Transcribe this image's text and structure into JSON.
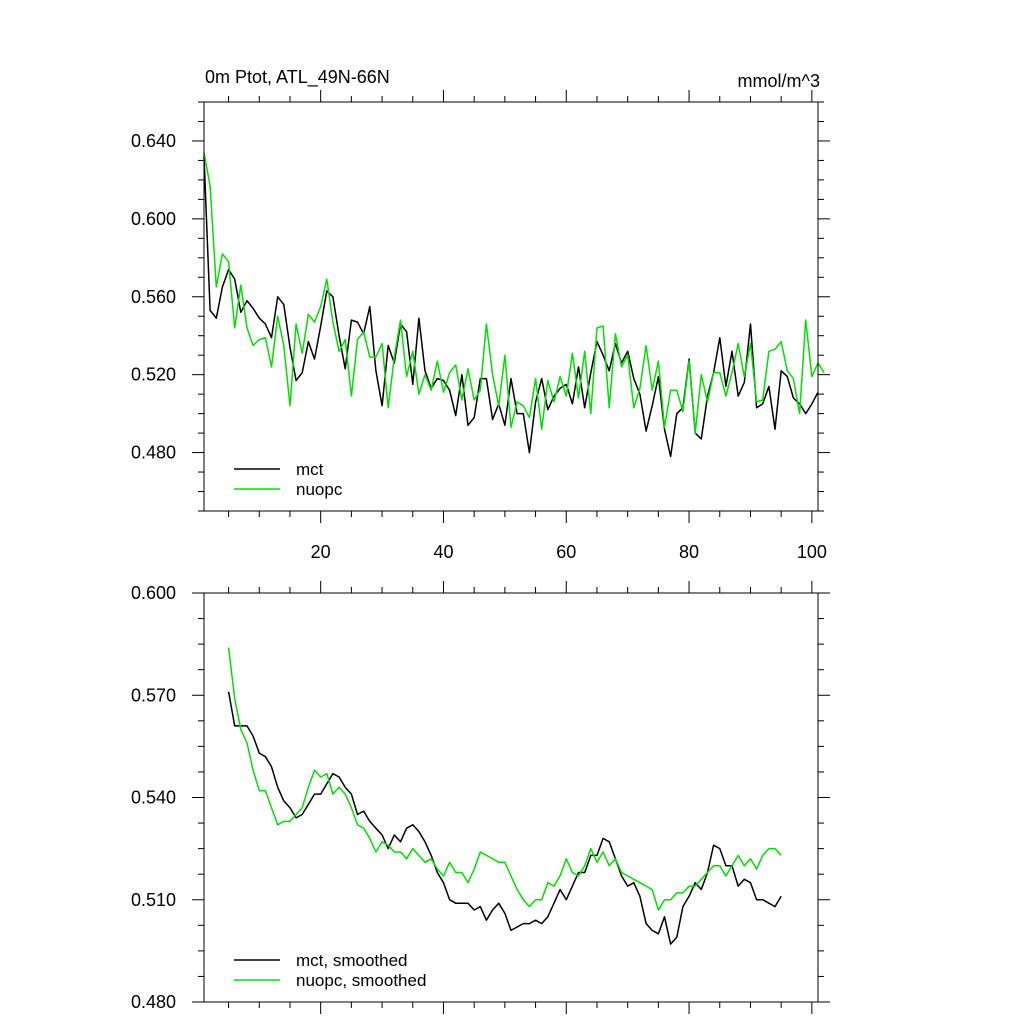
{
  "chart_data": [
    {
      "type": "line",
      "title": "0m Ptot, ATL_49N-66N",
      "units": "mmol/m^3",
      "xlabel": "",
      "ylabel": "",
      "xlim": [
        1,
        101
      ],
      "ylim": [
        0.45,
        0.66
      ],
      "x_ticks": [
        20,
        40,
        60,
        80,
        100
      ],
      "y_ticks": [
        0.48,
        0.52,
        0.56,
        0.6,
        0.64
      ],
      "x_tick_labels": [
        "20",
        "40",
        "60",
        "80",
        "100"
      ],
      "y_tick_labels": [
        "0.480",
        "0.520",
        "0.560",
        "0.600",
        "0.640"
      ],
      "x_start": 1,
      "x_step": 1,
      "legend_position": "bottom-left",
      "grid": false,
      "series": [
        {
          "name": "mct",
          "color": "#000000",
          "values": [
            0.632,
            0.553,
            0.549,
            0.565,
            0.574,
            0.569,
            0.552,
            0.558,
            0.554,
            0.549,
            0.546,
            0.539,
            0.56,
            0.556,
            0.534,
            0.517,
            0.521,
            0.537,
            0.528,
            0.545,
            0.563,
            0.56,
            0.54,
            0.523,
            0.548,
            0.547,
            0.541,
            0.555,
            0.522,
            0.504,
            0.535,
            0.526,
            0.546,
            0.542,
            0.515,
            0.549,
            0.522,
            0.513,
            0.518,
            0.517,
            0.512,
            0.499,
            0.52,
            0.494,
            0.498,
            0.518,
            0.518,
            0.497,
            0.505,
            0.494,
            0.518,
            0.5,
            0.5,
            0.48,
            0.506,
            0.518,
            0.502,
            0.509,
            0.513,
            0.515,
            0.505,
            0.524,
            0.503,
            0.521,
            0.537,
            0.53,
            0.522,
            0.536,
            0.526,
            0.532,
            0.518,
            0.51,
            0.491,
            0.504,
            0.519,
            0.492,
            0.478,
            0.5,
            0.503,
            0.528,
            0.49,
            0.487,
            0.509,
            0.521,
            0.539,
            0.514,
            0.532,
            0.509,
            0.516,
            0.546,
            0.503,
            0.505,
            0.514,
            0.492,
            0.522,
            0.519,
            0.508,
            0.505,
            0.5,
            0.505,
            0.511
          ]
        },
        {
          "name": "nuopc",
          "color": "#00e000",
          "values": [
            0.634,
            0.617,
            0.565,
            0.582,
            0.578,
            0.544,
            0.566,
            0.544,
            0.535,
            0.538,
            0.539,
            0.524,
            0.55,
            0.535,
            0.504,
            0.546,
            0.531,
            0.551,
            0.547,
            0.555,
            0.569,
            0.547,
            0.532,
            0.538,
            0.509,
            0.538,
            0.542,
            0.529,
            0.529,
            0.536,
            0.503,
            0.529,
            0.548,
            0.519,
            0.532,
            0.51,
            0.52,
            0.512,
            0.527,
            0.511,
            0.521,
            0.525,
            0.507,
            0.523,
            0.507,
            0.512,
            0.546,
            0.52,
            0.504,
            0.53,
            0.493,
            0.506,
            0.504,
            0.498,
            0.518,
            0.492,
            0.517,
            0.506,
            0.519,
            0.509,
            0.531,
            0.508,
            0.532,
            0.5,
            0.544,
            0.545,
            0.503,
            0.541,
            0.524,
            0.53,
            0.503,
            0.513,
            0.535,
            0.512,
            0.527,
            0.493,
            0.512,
            0.512,
            0.501,
            0.527,
            0.49,
            0.52,
            0.506,
            0.521,
            0.521,
            0.509,
            0.521,
            0.536,
            0.519,
            0.536,
            0.506,
            0.507,
            0.532,
            0.533,
            0.537,
            0.522,
            0.518,
            0.5,
            0.548,
            0.519,
            0.526,
            0.521
          ]
        }
      ]
    },
    {
      "type": "line",
      "title": "",
      "xlabel": "",
      "ylabel": "",
      "xlim": [
        1,
        101
      ],
      "ylim": [
        0.48,
        0.6
      ],
      "x_ticks": [
        20,
        40,
        60,
        80,
        100
      ],
      "y_ticks": [
        0.48,
        0.51,
        0.54,
        0.57,
        0.6
      ],
      "y_tick_labels": [
        "0.480",
        "0.510",
        "0.540",
        "0.570",
        "0.600"
      ],
      "x_start": 5,
      "x_step": 1,
      "legend_position": "bottom-left",
      "grid": false,
      "series": [
        {
          "name": "mct, smoothed",
          "color": "#000000",
          "values": [
            0.571,
            0.561,
            0.561,
            0.561,
            0.558,
            0.553,
            0.552,
            0.549,
            0.543,
            0.539,
            0.537,
            0.534,
            0.535,
            0.538,
            0.541,
            0.541,
            0.544,
            0.547,
            0.546,
            0.543,
            0.541,
            0.535,
            0.536,
            0.533,
            0.531,
            0.529,
            0.525,
            0.529,
            0.527,
            0.531,
            0.532,
            0.53,
            0.527,
            0.523,
            0.518,
            0.515,
            0.51,
            0.509,
            0.509,
            0.509,
            0.507,
            0.508,
            0.504,
            0.507,
            0.509,
            0.506,
            0.501,
            0.502,
            0.503,
            0.503,
            0.504,
            0.503,
            0.505,
            0.509,
            0.513,
            0.51,
            0.514,
            0.518,
            0.518,
            0.523,
            0.523,
            0.528,
            0.527,
            0.522,
            0.517,
            0.514,
            0.515,
            0.511,
            0.503,
            0.501,
            0.5,
            0.505,
            0.497,
            0.499,
            0.508,
            0.511,
            0.515,
            0.513,
            0.518,
            0.526,
            0.525,
            0.52,
            0.52,
            0.514,
            0.516,
            0.515,
            0.51,
            0.51,
            0.509,
            0.508,
            0.511
          ]
        },
        {
          "name": "nuopc, smoothed",
          "color": "#00e000",
          "values": [
            0.584,
            0.569,
            0.56,
            0.556,
            0.548,
            0.542,
            0.542,
            0.537,
            0.532,
            0.533,
            0.533,
            0.535,
            0.537,
            0.543,
            0.548,
            0.546,
            0.547,
            0.541,
            0.543,
            0.541,
            0.537,
            0.532,
            0.531,
            0.528,
            0.524,
            0.527,
            0.526,
            0.524,
            0.524,
            0.522,
            0.525,
            0.523,
            0.521,
            0.522,
            0.519,
            0.517,
            0.521,
            0.518,
            0.518,
            0.515,
            0.519,
            0.524,
            0.523,
            0.522,
            0.521,
            0.521,
            0.517,
            0.513,
            0.51,
            0.508,
            0.51,
            0.51,
            0.515,
            0.514,
            0.517,
            0.522,
            0.518,
            0.517,
            0.52,
            0.525,
            0.521,
            0.524,
            0.52,
            0.522,
            0.518,
            0.517,
            0.516,
            0.515,
            0.514,
            0.513,
            0.507,
            0.51,
            0.51,
            0.512,
            0.512,
            0.514,
            0.514,
            0.516,
            0.518,
            0.52,
            0.52,
            0.517,
            0.52,
            0.523,
            0.52,
            0.522,
            0.519,
            0.523,
            0.525,
            0.525,
            0.523
          ]
        }
      ]
    }
  ]
}
